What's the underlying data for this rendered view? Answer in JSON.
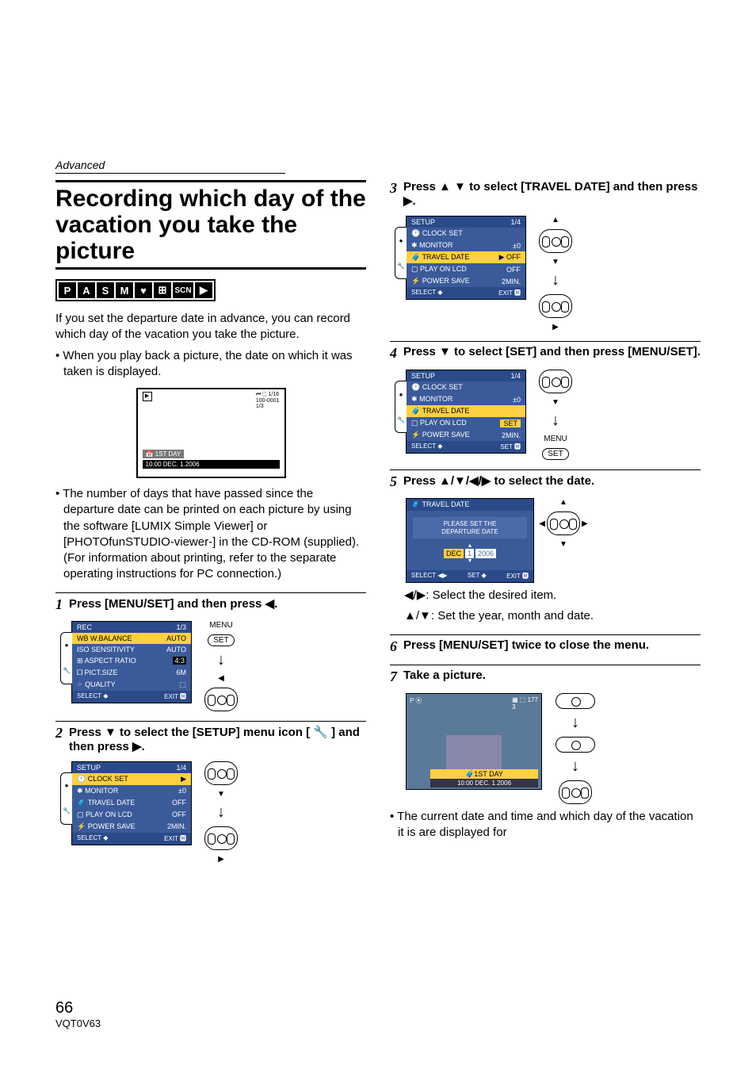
{
  "sectionLabel": "Advanced",
  "title": "Recording which day of the vacation you take the picture",
  "modes": [
    "P",
    "A",
    "S",
    "M",
    "♥",
    "⊞",
    "SCN",
    "▶"
  ],
  "intro": "If you set the departure date in advance, you can record which day of the vacation you take the picture.",
  "bullet1": "When you play back a picture, the date on which it was taken is displayed.",
  "playback": {
    "topRight1": "⏮ ⬚ 1/16",
    "topRight2": "100-0001",
    "topRight3": "1/3",
    "dayLabel": "📅 1ST DAY",
    "dateLabel": "10:00 DEC. 1.2006"
  },
  "bullet2": "The number of days that have passed since the departure date can be printed on each picture by using the software [LUMIX Simple Viewer] or [PHOTOfunSTUDIO-viewer-] in the CD-ROM (supplied). (For information about printing, refer to the separate operating instructions for PC connection.)",
  "step1": {
    "text": "Press [MENU/SET] and then press ◀.",
    "menu": {
      "title": "REC",
      "page": "1/3",
      "rows": [
        {
          "icon": "WB",
          "label": "W.BALANCE",
          "val": "AUTO",
          "hl": true
        },
        {
          "icon": "ISO",
          "label": "SENSITIVITY",
          "val": "AUTO"
        },
        {
          "icon": "⊞",
          "label": "ASPECT RATIO",
          "val": "4:3"
        },
        {
          "icon": "🞐",
          "label": "PICT.SIZE",
          "val": "6M"
        },
        {
          "icon": "⁘",
          "label": "QUALITY",
          "val": "⬚"
        }
      ],
      "footL": "SELECT ◆",
      "footR": "EXIT 🅼"
    },
    "ctrlTop": "MENU",
    "ctrlSet": "SET"
  },
  "step2": {
    "text": "Press ▼ to select the [SETUP] menu icon [ 🔧 ] and then press ▶.",
    "menu": {
      "title": "SETUP",
      "page": "1/4",
      "rows": [
        {
          "icon": "🕐",
          "label": "CLOCK SET",
          "val": "▶",
          "hl": true
        },
        {
          "icon": "✱",
          "label": "MONITOR",
          "val": "±0"
        },
        {
          "icon": "🧳",
          "label": "TRAVEL DATE",
          "val": "OFF"
        },
        {
          "icon": "▢",
          "label": "PLAY ON LCD",
          "val": "OFF"
        },
        {
          "icon": "⚡",
          "label": "POWER SAVE",
          "val": "2MIN."
        }
      ],
      "footL": "SELECT ◆",
      "footR": "EXIT 🅼"
    }
  },
  "step3": {
    "text": "Press ▲ ▼ to select [TRAVEL DATE] and then press ▶.",
    "menu": {
      "title": "SETUP",
      "page": "1/4",
      "rows": [
        {
          "icon": "🕐",
          "label": "CLOCK SET",
          "val": ""
        },
        {
          "icon": "✱",
          "label": "MONITOR",
          "val": "±0"
        },
        {
          "icon": "🧳",
          "label": "TRAVEL DATE",
          "val": "▶ OFF",
          "hl": true
        },
        {
          "icon": "▢",
          "label": "PLAY ON LCD",
          "val": "OFF"
        },
        {
          "icon": "⚡",
          "label": "POWER SAVE",
          "val": "2MIN."
        }
      ],
      "footL": "SELECT ◆",
      "footR": "EXIT 🅼"
    }
  },
  "step4": {
    "text": "Press ▼ to select [SET] and then press [MENU/SET].",
    "menu": {
      "title": "SETUP",
      "page": "1/4",
      "rows": [
        {
          "icon": "🕐",
          "label": "CLOCK SET",
          "val": ""
        },
        {
          "icon": "✱",
          "label": "MONITOR",
          "val": "±0"
        },
        {
          "icon": "🧳",
          "label": "TRAVEL DATE",
          "val": "",
          "hl": true
        },
        {
          "icon": "▢",
          "label": "PLAY ON LCD",
          "val": "SET",
          "hlset": true
        },
        {
          "icon": "⚡",
          "label": "POWER SAVE",
          "val": "2MIN."
        }
      ],
      "footL": "SELECT ◆",
      "footR": "SET 🅼"
    },
    "ctrlMenu": "MENU",
    "ctrlSet": "SET"
  },
  "step5": {
    "text": "Press ▲/▼/◀/▶ to select the date.",
    "travel": {
      "hdr": "🧳 TRAVEL DATE",
      "msg": "PLEASE SET THE\nDEPARTURE DATE",
      "d1": "DEC",
      "d2": "1",
      "d3": "2006",
      "footL": "SELECT ◀▶",
      "footM": "SET ◆",
      "footR": "EXIT 🅼"
    },
    "note1": "◀/▶: Select the desired item.",
    "note2": "▲/▼: Set the year, month and date."
  },
  "step6": {
    "text": "Press [MENU/SET] twice to close the menu."
  },
  "step7": {
    "text": "Take a picture.",
    "photo": {
      "topL": "P ⦿",
      "topR": "▦ ⬚ 177",
      "topR2": "3",
      "day": "🧳1ST DAY",
      "date": "10:00 DEC. 1.2006"
    }
  },
  "bullet3": "The current date and time and which day of the vacation it is are displayed for",
  "pageNum": "66",
  "pageCode": "VQT0V63"
}
